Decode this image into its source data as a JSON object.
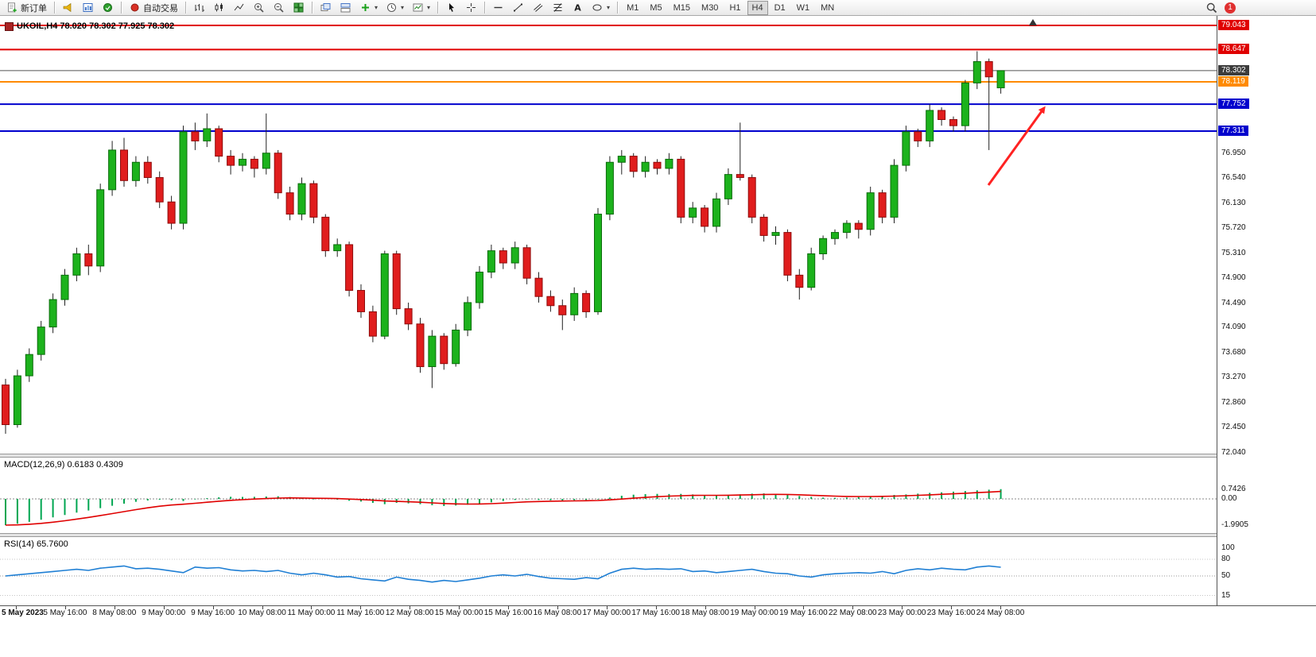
{
  "toolbar": {
    "new_order": "新订单",
    "auto_trading": "自动交易",
    "timeframes": [
      "M1",
      "M5",
      "M15",
      "M30",
      "H1",
      "H4",
      "D1",
      "W1",
      "MN"
    ],
    "active_timeframe": "H4",
    "notification_badge": "1",
    "icons": {
      "dropdown_caret": "▾"
    }
  },
  "chart": {
    "symbol_title": "UKOIL,H4 78.020 78.302 77.925 78.302",
    "ohlc_title": {
      "open": "78.020",
      "high": "78.302",
      "low": "77.925",
      "close": "78.302"
    },
    "levels": [
      {
        "label": "79.043",
        "value": 79.043,
        "line": "#e00000",
        "badge": "#e00000"
      },
      {
        "label": "78.647",
        "value": 78.647,
        "line": "#e00000",
        "badge": "#e00000"
      },
      {
        "label": "78.302",
        "value": 78.302,
        "line": "#555555",
        "badge": "#3c3c3c"
      },
      {
        "label": "78.119",
        "value": 78.119,
        "line": "#ff8a00",
        "badge": "#ff8a00"
      },
      {
        "label": "77.752",
        "value": 77.752,
        "line": "#0000cd",
        "badge": "#0000cd"
      },
      {
        "label": "77.311",
        "value": 77.311,
        "line": "#0000cd",
        "badge": "#0000cd"
      }
    ],
    "price_scale": [
      "76.950",
      "76.540",
      "76.130",
      "75.720",
      "75.310",
      "74.900",
      "74.490",
      "74.090",
      "73.680",
      "73.270",
      "72.860",
      "72.450",
      "72.040"
    ],
    "up_color": "#1cb21c",
    "down_color": "#e01d1d",
    "wick_color": "#222222",
    "arrow_color": "#ff2222"
  },
  "macd": {
    "label": "MACD(12,26,9) 0.6183 0.4309",
    "scale": [
      "0.7426",
      "0.00",
      "-1.9905"
    ],
    "histogram_color": "#00a651",
    "signal_color": "#e00000"
  },
  "rsi": {
    "label": "RSI(14) 65.7600",
    "scale": [
      "100",
      "80",
      "50",
      "15"
    ],
    "line_color": "#1f7fd4"
  },
  "chart_data": {
    "type": "candlestick",
    "symbol": "UKOIL",
    "timeframe": "H4",
    "title": "UKOIL,H4",
    "y_range": [
      72.04,
      79.1
    ],
    "x_labels": [
      "5 May 2023",
      "5 May 16:00",
      "8 May 08:00",
      "9 May 00:00",
      "9 May 16:00",
      "10 May 08:00",
      "11 May 00:00",
      "11 May 16:00",
      "12 May 08:00",
      "15 May 00:00",
      "15 May 16:00",
      "16 May 08:00",
      "17 May 00:00",
      "17 May 16:00",
      "18 May 08:00",
      "19 May 00:00",
      "19 May 16:00",
      "22 May 08:00",
      "23 May 00:00",
      "23 May 16:00",
      "24 May 08:00"
    ],
    "ohlc": [
      [
        73.15,
        73.25,
        72.35,
        72.5
      ],
      [
        72.5,
        73.4,
        72.45,
        73.3
      ],
      [
        73.3,
        73.75,
        73.2,
        73.65
      ],
      [
        73.65,
        74.2,
        73.55,
        74.1
      ],
      [
        74.1,
        74.65,
        74.0,
        74.55
      ],
      [
        74.55,
        75.05,
        74.45,
        74.95
      ],
      [
        74.95,
        75.4,
        74.85,
        75.3
      ],
      [
        75.3,
        75.45,
        74.95,
        75.1
      ],
      [
        75.1,
        76.45,
        75.0,
        76.35
      ],
      [
        76.35,
        77.15,
        76.25,
        77.0
      ],
      [
        77.0,
        77.2,
        76.4,
        76.5
      ],
      [
        76.5,
        76.9,
        76.4,
        76.8
      ],
      [
        76.8,
        76.9,
        76.45,
        76.55
      ],
      [
        76.55,
        76.65,
        76.05,
        76.15
      ],
      [
        76.15,
        76.25,
        75.7,
        75.8
      ],
      [
        75.8,
        77.4,
        75.7,
        77.3
      ],
      [
        77.3,
        77.45,
        77.0,
        77.15
      ],
      [
        77.15,
        77.6,
        77.05,
        77.35
      ],
      [
        77.35,
        77.4,
        76.8,
        76.9
      ],
      [
        76.9,
        77.0,
        76.6,
        76.75
      ],
      [
        76.75,
        76.95,
        76.65,
        76.85
      ],
      [
        76.85,
        76.9,
        76.55,
        76.7
      ],
      [
        76.7,
        77.6,
        76.6,
        76.95
      ],
      [
        76.95,
        77.0,
        76.2,
        76.3
      ],
      [
        76.3,
        76.4,
        75.85,
        75.95
      ],
      [
        75.95,
        76.55,
        75.85,
        76.45
      ],
      [
        76.45,
        76.5,
        75.8,
        75.9
      ],
      [
        75.9,
        75.95,
        75.25,
        75.35
      ],
      [
        75.35,
        75.55,
        75.25,
        75.45
      ],
      [
        75.45,
        75.5,
        74.6,
        74.7
      ],
      [
        74.7,
        74.8,
        74.25,
        74.35
      ],
      [
        74.35,
        74.45,
        73.85,
        73.95
      ],
      [
        73.95,
        75.35,
        73.9,
        75.3
      ],
      [
        75.3,
        75.35,
        74.3,
        74.4
      ],
      [
        74.4,
        74.5,
        74.05,
        74.15
      ],
      [
        74.15,
        74.25,
        73.35,
        73.45
      ],
      [
        73.45,
        74.05,
        73.1,
        73.95
      ],
      [
        73.95,
        74.0,
        73.4,
        73.5
      ],
      [
        73.5,
        74.15,
        73.45,
        74.05
      ],
      [
        74.05,
        74.6,
        73.95,
        74.5
      ],
      [
        74.5,
        75.1,
        74.4,
        75.0
      ],
      [
        75.0,
        75.45,
        74.9,
        75.35
      ],
      [
        75.35,
        75.4,
        75.05,
        75.15
      ],
      [
        75.15,
        75.5,
        75.05,
        75.4
      ],
      [
        75.4,
        75.45,
        74.8,
        74.9
      ],
      [
        74.9,
        75.0,
        74.5,
        74.6
      ],
      [
        74.6,
        74.7,
        74.35,
        74.45
      ],
      [
        74.45,
        74.55,
        74.05,
        74.3
      ],
      [
        74.3,
        74.75,
        74.2,
        74.65
      ],
      [
        74.65,
        74.7,
        74.25,
        74.35
      ],
      [
        74.35,
        76.05,
        74.3,
        75.95
      ],
      [
        75.95,
        76.9,
        75.85,
        76.8
      ],
      [
        76.8,
        77.0,
        76.6,
        76.9
      ],
      [
        76.9,
        76.95,
        76.55,
        76.65
      ],
      [
        76.65,
        76.9,
        76.55,
        76.8
      ],
      [
        76.8,
        76.85,
        76.6,
        76.7
      ],
      [
        76.7,
        76.95,
        76.6,
        76.85
      ],
      [
        76.85,
        76.9,
        75.8,
        75.9
      ],
      [
        75.9,
        76.15,
        75.8,
        76.05
      ],
      [
        76.05,
        76.1,
        75.65,
        75.75
      ],
      [
        75.75,
        76.3,
        75.65,
        76.2
      ],
      [
        76.2,
        76.7,
        76.1,
        76.6
      ],
      [
        76.6,
        77.45,
        76.5,
        76.55
      ],
      [
        76.55,
        76.6,
        75.8,
        75.9
      ],
      [
        75.9,
        75.95,
        75.5,
        75.6
      ],
      [
        75.6,
        75.75,
        75.45,
        75.65
      ],
      [
        75.65,
        75.7,
        74.85,
        74.95
      ],
      [
        74.95,
        75.05,
        74.55,
        74.75
      ],
      [
        74.75,
        75.4,
        74.7,
        75.3
      ],
      [
        75.3,
        75.6,
        75.2,
        75.55
      ],
      [
        75.55,
        75.7,
        75.45,
        75.65
      ],
      [
        75.65,
        75.85,
        75.55,
        75.8
      ],
      [
        75.8,
        75.85,
        75.55,
        75.7
      ],
      [
        75.7,
        76.4,
        75.6,
        76.3
      ],
      [
        76.3,
        76.35,
        75.8,
        75.9
      ],
      [
        75.9,
        76.85,
        75.8,
        76.75
      ],
      [
        76.75,
        77.4,
        76.65,
        77.3
      ],
      [
        77.3,
        77.35,
        77.05,
        77.15
      ],
      [
        77.15,
        77.75,
        77.05,
        77.65
      ],
      [
        77.65,
        77.7,
        77.4,
        77.5
      ],
      [
        77.5,
        77.55,
        77.3,
        77.4
      ],
      [
        77.4,
        78.15,
        77.3,
        78.1
      ],
      [
        78.1,
        78.62,
        78.0,
        78.45
      ],
      [
        78.45,
        78.5,
        77.0,
        78.2
      ],
      [
        78.02,
        78.302,
        77.925,
        78.302
      ]
    ],
    "macd_histogram": [
      -1.99,
      -1.88,
      -1.74,
      -1.58,
      -1.4,
      -1.22,
      -1.04,
      -0.88,
      -0.7,
      -0.52,
      -0.36,
      -0.22,
      -0.12,
      -0.06,
      -0.1,
      -0.16,
      -0.04,
      0.06,
      0.12,
      0.16,
      0.15,
      0.16,
      0.18,
      0.2,
      0.14,
      0.04,
      -0.04,
      0.02,
      -0.06,
      -0.14,
      -0.2,
      -0.3,
      -0.4,
      -0.3,
      -0.34,
      -0.4,
      -0.48,
      -0.54,
      -0.5,
      -0.44,
      -0.36,
      -0.26,
      -0.16,
      -0.08,
      -0.04,
      -0.08,
      -0.1,
      -0.12,
      -0.1,
      -0.08,
      -0.04,
      0.1,
      0.24,
      0.32,
      0.36,
      0.38,
      0.37,
      0.38,
      0.34,
      0.3,
      0.28,
      0.31,
      0.35,
      0.4,
      0.42,
      0.38,
      0.3,
      0.22,
      0.15,
      0.1,
      0.08,
      0.1,
      0.14,
      0.18,
      0.24,
      0.3,
      0.34,
      0.4,
      0.46,
      0.5,
      0.55,
      0.6,
      0.65,
      0.7,
      0.74
    ],
    "macd_values": {
      "macd": 0.6183,
      "signal": 0.4309
    },
    "rsi": [
      50,
      52,
      54,
      56,
      58,
      60,
      62,
      60,
      64,
      66,
      68,
      63,
      64,
      62,
      59,
      56,
      66,
      64,
      65,
      61,
      59,
      60,
      58,
      60,
      55,
      52,
      55,
      52,
      48,
      49,
      45,
      43,
      41,
      48,
      44,
      42,
      39,
      42,
      40,
      43,
      46,
      50,
      52,
      50,
      53,
      49,
      46,
      45,
      44,
      47,
      45,
      55,
      62,
      64,
      62,
      63,
      62,
      63,
      58,
      59,
      56,
      58,
      60,
      62,
      58,
      55,
      54,
      50,
      48,
      52,
      54,
      55,
      56,
      55,
      58,
      54,
      60,
      63,
      61,
      64,
      62,
      61,
      66,
      68,
      65.76
    ],
    "rsi_current": 65.76,
    "annotations": [
      {
        "type": "arrow",
        "color": "#ff2222",
        "from": {
          "x": 1243,
          "y": 233
        },
        "to": {
          "x": 1313,
          "y": 136
        }
      }
    ]
  }
}
